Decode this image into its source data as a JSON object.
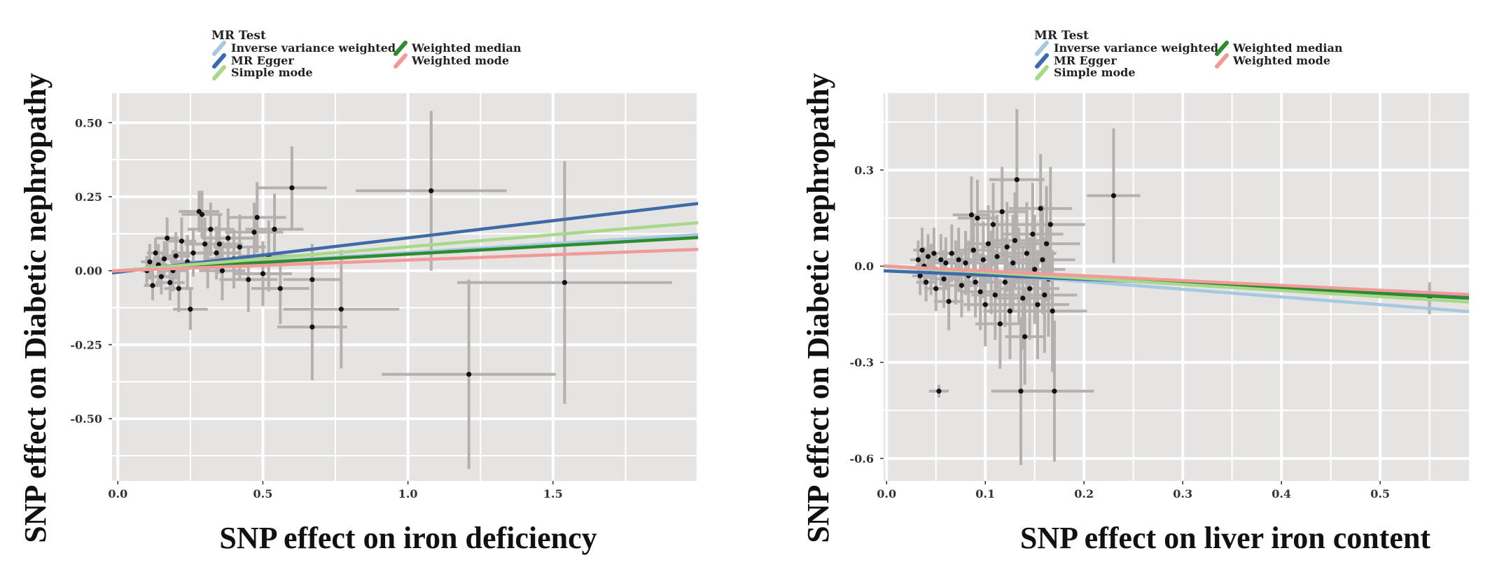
{
  "legend": {
    "title": "MR Test",
    "items": [
      {
        "label": "Inverse variance weighted",
        "color": "#a6c8e0"
      },
      {
        "label": "Weighted median",
        "color": "#2e8b2e"
      },
      {
        "label": "MR Egger",
        "color": "#3e6aa8"
      },
      {
        "label": "Weighted mode",
        "color": "#f29a9a"
      },
      {
        "label": "Simple mode",
        "color": "#a8d88a"
      }
    ]
  },
  "chart_data": [
    {
      "type": "scatter",
      "title": "",
      "xlabel": "SNP effect on  iron deficiency",
      "ylabel": "SNP effect on Diabetic nephropathy",
      "xlim": [
        -0.02,
        2.0
      ],
      "ylim": [
        -0.71,
        0.6
      ],
      "xticks": [
        0.0,
        0.5,
        1.0,
        1.5
      ],
      "xtick_labels": [
        "0.0",
        "0.5",
        "1.0",
        "1.5"
      ],
      "yticks": [
        0.5,
        0.25,
        0.0,
        -0.25,
        -0.5
      ],
      "ytick_labels": [
        "0.50",
        "0.25",
        "0.00",
        "-0.25",
        "-0.50"
      ],
      "grid": true,
      "background": "#e6e3e3",
      "points": [
        {
          "x": 0.1,
          "y": 0.0,
          "xe": 0.02,
          "ye": 0.05
        },
        {
          "x": 0.11,
          "y": 0.03,
          "xe": 0.03,
          "ye": 0.06
        },
        {
          "x": 0.12,
          "y": -0.05,
          "xe": 0.03,
          "ye": 0.05
        },
        {
          "x": 0.13,
          "y": 0.06,
          "xe": 0.03,
          "ye": 0.05
        },
        {
          "x": 0.14,
          "y": 0.02,
          "xe": 0.03,
          "ye": 0.07
        },
        {
          "x": 0.15,
          "y": -0.02,
          "xe": 0.04,
          "ye": 0.06
        },
        {
          "x": 0.16,
          "y": 0.04,
          "xe": 0.04,
          "ye": 0.06
        },
        {
          "x": 0.17,
          "y": 0.11,
          "xe": 0.04,
          "ye": 0.07
        },
        {
          "x": 0.18,
          "y": -0.04,
          "xe": 0.05,
          "ye": 0.06
        },
        {
          "x": 0.19,
          "y": 0.0,
          "xe": 0.05,
          "ye": 0.07
        },
        {
          "x": 0.2,
          "y": 0.05,
          "xe": 0.05,
          "ye": 0.08
        },
        {
          "x": 0.21,
          "y": -0.06,
          "xe": 0.05,
          "ye": 0.08
        },
        {
          "x": 0.22,
          "y": 0.1,
          "xe": 0.05,
          "ye": 0.08
        },
        {
          "x": 0.24,
          "y": 0.03,
          "xe": 0.06,
          "ye": 0.09
        },
        {
          "x": 0.25,
          "y": -0.13,
          "xe": 0.06,
          "ye": 0.07
        },
        {
          "x": 0.26,
          "y": 0.06,
          "xe": 0.06,
          "ye": 0.08
        },
        {
          "x": 0.28,
          "y": 0.2,
          "xe": 0.07,
          "ye": 0.07
        },
        {
          "x": 0.29,
          "y": 0.19,
          "xe": 0.07,
          "ye": 0.08
        },
        {
          "x": 0.3,
          "y": 0.09,
          "xe": 0.07,
          "ye": 0.09
        },
        {
          "x": 0.31,
          "y": 0.02,
          "xe": 0.07,
          "ye": 0.08
        },
        {
          "x": 0.32,
          "y": 0.14,
          "xe": 0.08,
          "ye": 0.09
        },
        {
          "x": 0.34,
          "y": 0.06,
          "xe": 0.08,
          "ye": 0.09
        },
        {
          "x": 0.35,
          "y": 0.09,
          "xe": 0.08,
          "ye": 0.1
        },
        {
          "x": 0.36,
          "y": 0.0,
          "xe": 0.08,
          "ye": 0.1
        },
        {
          "x": 0.38,
          "y": 0.11,
          "xe": 0.09,
          "ye": 0.1
        },
        {
          "x": 0.4,
          "y": 0.04,
          "xe": 0.09,
          "ye": 0.1
        },
        {
          "x": 0.42,
          "y": 0.08,
          "xe": 0.09,
          "ye": 0.11
        },
        {
          "x": 0.45,
          "y": -0.03,
          "xe": 0.1,
          "ye": 0.11
        },
        {
          "x": 0.47,
          "y": 0.13,
          "xe": 0.1,
          "ye": 0.1
        },
        {
          "x": 0.48,
          "y": 0.18,
          "xe": 0.1,
          "ye": 0.12
        },
        {
          "x": 0.5,
          "y": -0.01,
          "xe": 0.1,
          "ye": 0.11
        },
        {
          "x": 0.52,
          "y": 0.05,
          "xe": 0.1,
          "ye": 0.12
        },
        {
          "x": 0.54,
          "y": 0.14,
          "xe": 0.1,
          "ye": 0.12
        },
        {
          "x": 0.56,
          "y": -0.06,
          "xe": 0.1,
          "ye": 0.12
        },
        {
          "x": 0.6,
          "y": 0.28,
          "xe": 0.12,
          "ye": 0.14
        },
        {
          "x": 0.67,
          "y": -0.03,
          "xe": 0.1,
          "ye": 0.12
        },
        {
          "x": 0.67,
          "y": -0.19,
          "xe": 0.12,
          "ye": 0.18
        },
        {
          "x": 0.77,
          "y": -0.13,
          "xe": 0.2,
          "ye": 0.2
        },
        {
          "x": 1.08,
          "y": 0.27,
          "xe": 0.26,
          "ye": 0.27
        },
        {
          "x": 1.21,
          "y": -0.35,
          "xe": 0.3,
          "ye": 0.32
        },
        {
          "x": 1.54,
          "y": -0.04,
          "xe": 0.37,
          "ye": 0.41
        }
      ],
      "series": [
        {
          "name": "Inverse variance weighted",
          "color": "#a6c8e0",
          "intercept": 0.0,
          "slope": 0.061
        },
        {
          "name": "MR Egger",
          "color": "#3e6aa8",
          "intercept": -0.005,
          "slope": 0.116
        },
        {
          "name": "Weighted median",
          "color": "#2e8b2e",
          "intercept": 0.0,
          "slope": 0.056
        },
        {
          "name": "Simple mode",
          "color": "#a8d88a",
          "intercept": 0.0,
          "slope": 0.081
        },
        {
          "name": "Weighted mode",
          "color": "#f29a9a",
          "intercept": 0.0,
          "slope": 0.036
        }
      ]
    },
    {
      "type": "scatter",
      "title": "",
      "xlabel": "SNP effect on  liver iron content",
      "ylabel": "SNP effect on Diabetic nephropathy",
      "xlim": [
        -0.003,
        0.59
      ],
      "ylim": [
        -0.67,
        0.54
      ],
      "xticks": [
        0.0,
        0.1,
        0.2,
        0.3,
        0.4,
        0.5
      ],
      "xtick_labels": [
        "0.0",
        "0.1",
        "0.2",
        "0.3",
        "0.4",
        "0.5"
      ],
      "yticks": [
        0.3,
        0.0,
        -0.3,
        -0.6
      ],
      "ytick_labels": [
        "0.3",
        "0.0",
        "-0.3",
        "-0.6"
      ],
      "grid": true,
      "background": "#e6e3e3",
      "points": [
        {
          "x": 0.032,
          "y": 0.02,
          "xe": 0.008,
          "ye": 0.06
        },
        {
          "x": 0.034,
          "y": -0.03,
          "xe": 0.008,
          "ye": 0.06
        },
        {
          "x": 0.036,
          "y": 0.05,
          "xe": 0.009,
          "ye": 0.07
        },
        {
          "x": 0.038,
          "y": 0.0,
          "xe": 0.009,
          "ye": 0.06
        },
        {
          "x": 0.04,
          "y": -0.05,
          "xe": 0.01,
          "ye": 0.06
        },
        {
          "x": 0.042,
          "y": 0.03,
          "xe": 0.01,
          "ye": 0.07
        },
        {
          "x": 0.045,
          "y": -0.01,
          "xe": 0.011,
          "ye": 0.08
        },
        {
          "x": 0.048,
          "y": 0.04,
          "xe": 0.012,
          "ye": 0.08
        },
        {
          "x": 0.05,
          "y": -0.07,
          "xe": 0.012,
          "ye": 0.07
        },
        {
          "x": 0.053,
          "y": -0.39,
          "xe": 0.01,
          "ye": 0.02
        },
        {
          "x": 0.055,
          "y": 0.02,
          "xe": 0.013,
          "ye": 0.08
        },
        {
          "x": 0.058,
          "y": -0.04,
          "xe": 0.014,
          "ye": 0.09
        },
        {
          "x": 0.06,
          "y": 0.01,
          "xe": 0.014,
          "ye": 0.08
        },
        {
          "x": 0.063,
          "y": -0.11,
          "xe": 0.015,
          "ye": 0.09
        },
        {
          "x": 0.066,
          "y": 0.04,
          "xe": 0.015,
          "ye": 0.09
        },
        {
          "x": 0.07,
          "y": -0.02,
          "xe": 0.016,
          "ye": 0.1
        },
        {
          "x": 0.073,
          "y": 0.02,
          "xe": 0.017,
          "ye": 0.1
        },
        {
          "x": 0.076,
          "y": -0.06,
          "xe": 0.017,
          "ye": 0.1
        },
        {
          "x": 0.08,
          "y": 0.01,
          "xe": 0.018,
          "ye": 0.1
        },
        {
          "x": 0.083,
          "y": -0.03,
          "xe": 0.018,
          "ye": 0.11
        },
        {
          "x": 0.086,
          "y": 0.16,
          "xe": 0.019,
          "ye": 0.12
        },
        {
          "x": 0.088,
          "y": 0.05,
          "xe": 0.019,
          "ye": 0.11
        },
        {
          "x": 0.09,
          "y": -0.05,
          "xe": 0.02,
          "ye": 0.11
        },
        {
          "x": 0.092,
          "y": 0.15,
          "xe": 0.02,
          "ye": 0.12
        },
        {
          "x": 0.095,
          "y": -0.08,
          "xe": 0.021,
          "ye": 0.12
        },
        {
          "x": 0.098,
          "y": 0.02,
          "xe": 0.021,
          "ye": 0.12
        },
        {
          "x": 0.1,
          "y": -0.12,
          "xe": 0.022,
          "ye": 0.13
        },
        {
          "x": 0.103,
          "y": 0.07,
          "xe": 0.022,
          "ye": 0.12
        },
        {
          "x": 0.106,
          "y": -0.02,
          "xe": 0.023,
          "ye": 0.13
        },
        {
          "x": 0.108,
          "y": 0.13,
          "xe": 0.023,
          "ye": 0.13
        },
        {
          "x": 0.11,
          "y": -0.09,
          "xe": 0.024,
          "ye": 0.14
        },
        {
          "x": 0.112,
          "y": 0.03,
          "xe": 0.024,
          "ye": 0.13
        },
        {
          "x": 0.115,
          "y": -0.18,
          "xe": 0.025,
          "ye": 0.14
        },
        {
          "x": 0.117,
          "y": 0.17,
          "xe": 0.025,
          "ye": 0.14
        },
        {
          "x": 0.12,
          "y": -0.05,
          "xe": 0.026,
          "ye": 0.14
        },
        {
          "x": 0.122,
          "y": 0.06,
          "xe": 0.026,
          "ye": 0.14
        },
        {
          "x": 0.125,
          "y": -0.14,
          "xe": 0.027,
          "ye": 0.15
        },
        {
          "x": 0.128,
          "y": 0.01,
          "xe": 0.027,
          "ye": 0.15
        },
        {
          "x": 0.13,
          "y": 0.08,
          "xe": 0.028,
          "ye": 0.15
        },
        {
          "x": 0.132,
          "y": 0.27,
          "xe": 0.028,
          "ye": 0.22
        },
        {
          "x": 0.134,
          "y": -0.03,
          "xe": 0.028,
          "ye": 0.15
        },
        {
          "x": 0.136,
          "y": -0.39,
          "xe": 0.03,
          "ye": 0.23
        },
        {
          "x": 0.138,
          "y": -0.1,
          "xe": 0.029,
          "ye": 0.16
        },
        {
          "x": 0.14,
          "y": -0.22,
          "xe": 0.02,
          "ye": 0.15
        },
        {
          "x": 0.142,
          "y": 0.04,
          "xe": 0.03,
          "ye": 0.16
        },
        {
          "x": 0.145,
          "y": -0.07,
          "xe": 0.03,
          "ye": 0.16
        },
        {
          "x": 0.148,
          "y": 0.1,
          "xe": 0.031,
          "ye": 0.16
        },
        {
          "x": 0.15,
          "y": -0.01,
          "xe": 0.031,
          "ye": 0.17
        },
        {
          "x": 0.153,
          "y": -0.12,
          "xe": 0.032,
          "ye": 0.17
        },
        {
          "x": 0.156,
          "y": 0.18,
          "xe": 0.032,
          "ye": 0.17
        },
        {
          "x": 0.158,
          "y": 0.02,
          "xe": 0.033,
          "ye": 0.17
        },
        {
          "x": 0.16,
          "y": -0.09,
          "xe": 0.033,
          "ye": 0.18
        },
        {
          "x": 0.162,
          "y": 0.07,
          "xe": 0.034,
          "ye": 0.18
        },
        {
          "x": 0.164,
          "y": -0.04,
          "xe": 0.034,
          "ye": 0.18
        },
        {
          "x": 0.166,
          "y": 0.13,
          "xe": 0.035,
          "ye": 0.18
        },
        {
          "x": 0.168,
          "y": -0.14,
          "xe": 0.035,
          "ye": 0.19
        },
        {
          "x": 0.17,
          "y": -0.39,
          "xe": 0.04,
          "ye": 0.22
        },
        {
          "x": 0.23,
          "y": 0.22,
          "xe": 0.027,
          "ye": 0.21
        },
        {
          "x": 0.55,
          "y": -0.1,
          "xe": 0.003,
          "ye": 0.05
        }
      ],
      "series": [
        {
          "name": "Inverse variance weighted",
          "color": "#a6c8e0",
          "intercept": 0.0,
          "slope": -0.24
        },
        {
          "name": "MR Egger",
          "color": "#3e6aa8",
          "intercept": -0.015,
          "slope": -0.13
        },
        {
          "name": "Weighted median",
          "color": "#2e8b2e",
          "intercept": 0.0,
          "slope": -0.17
        },
        {
          "name": "Simple mode",
          "color": "#a8d88a",
          "intercept": 0.0,
          "slope": -0.19
        },
        {
          "name": "Weighted mode",
          "color": "#f29a9a",
          "intercept": 0.0,
          "slope": -0.15
        }
      ]
    }
  ]
}
